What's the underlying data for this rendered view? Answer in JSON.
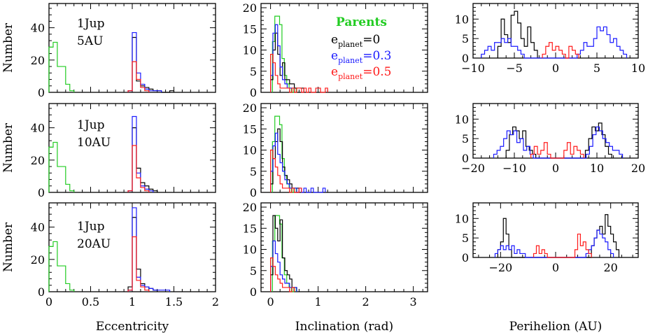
{
  "colors": {
    "parents": "#22cc22",
    "e0": "#000000",
    "e03": "#1a1aff",
    "e05": "#ff1a1a"
  },
  "legend": {
    "title": "Parents",
    "entries": [
      {
        "main": "e",
        "sub": "planet",
        "suffix": "=0",
        "color": "#000000"
      },
      {
        "main": "e",
        "sub": "planet",
        "suffix": "=0.3",
        "color": "#1a1aff"
      },
      {
        "main": "e",
        "sub": "planet",
        "suffix": "=0.5",
        "color": "#ff1a1a"
      }
    ]
  },
  "rows": [
    {
      "label_line1": "1Jup",
      "label_line2": "5AU"
    },
    {
      "label_line1": "1Jup",
      "label_line2": "10AU"
    },
    {
      "label_line1": "1Jup",
      "label_line2": "20AU"
    }
  ],
  "chart_data": [
    {
      "id": "ecc-5AU",
      "type": "histogram",
      "xlabel": "",
      "ylabel": "Number",
      "xlim": [
        0,
        2
      ],
      "ylim": [
        0,
        55
      ],
      "xticks": [
        0,
        0.5,
        1,
        1.5,
        2
      ],
      "yticks": [
        0,
        20,
        40
      ],
      "show_xticklabels": false,
      "series": [
        {
          "key": "parents",
          "x0": 0,
          "dx": 0.05,
          "values": [
            28,
            31,
            16,
            16,
            5,
            1
          ]
        },
        {
          "key": "e0",
          "x0": 0.95,
          "dx": 0.05,
          "values": [
            1,
            34,
            7,
            4,
            3,
            2,
            1,
            1,
            0,
            0,
            1
          ]
        },
        {
          "key": "e03",
          "x0": 0.95,
          "dx": 0.05,
          "values": [
            1,
            37,
            12,
            5,
            2,
            1,
            1,
            1
          ]
        },
        {
          "key": "e05",
          "x0": 0.95,
          "dx": 0.05,
          "values": [
            1,
            19,
            8,
            3,
            1
          ]
        }
      ]
    },
    {
      "id": "inc-5AU",
      "type": "histogram",
      "xlabel": "",
      "ylabel": "",
      "xlim": [
        -0.2,
        3.3
      ],
      "ylim": [
        0,
        21
      ],
      "xticks": [
        0,
        1,
        2,
        3
      ],
      "yticks": [
        0,
        5,
        10,
        15,
        20
      ],
      "show_xticklabels": false,
      "series": [
        {
          "key": "parents",
          "x0": 0.04,
          "dx": 0.05,
          "values": [
            12,
            18,
            18,
            16,
            8,
            4,
            2,
            1,
            0,
            1
          ]
        },
        {
          "key": "e0",
          "x0": 0,
          "dx": 0.05,
          "values": [
            3,
            10,
            14,
            9,
            4,
            7,
            3,
            3,
            2,
            2,
            1,
            1,
            1,
            1
          ]
        },
        {
          "key": "e03",
          "x0": 0,
          "dx": 0.05,
          "values": [
            4,
            14,
            16,
            11,
            6,
            3,
            2,
            1,
            1,
            1
          ]
        },
        {
          "key": "e05",
          "x0": 0,
          "dx": 0.05,
          "values": [
            9,
            7,
            4,
            2,
            1,
            1,
            1,
            1,
            0,
            1,
            0,
            1,
            1,
            0,
            1,
            0,
            1,
            0,
            0,
            1,
            1,
            0,
            0,
            1
          ]
        }
      ]
    },
    {
      "id": "peri-5AU",
      "type": "histogram",
      "xlabel": "",
      "ylabel": "",
      "xlim": [
        -10,
        10
      ],
      "ylim": [
        0,
        14
      ],
      "xticks": [
        -10,
        -5,
        0,
        5,
        10
      ],
      "yticks": [
        0,
        5,
        10
      ],
      "show_xticklabels": true,
      "series": [
        {
          "key": "e0",
          "x0": -7,
          "dx": 0.4,
          "values": [
            3,
            10,
            6,
            4,
            11,
            12,
            9,
            5,
            3,
            8,
            4,
            2
          ]
        },
        {
          "key": "e03",
          "x0": -9,
          "dx": 0.4,
          "values": [
            1,
            2,
            3,
            2,
            4,
            4,
            5,
            4,
            5,
            3,
            3,
            2,
            1,
            0,
            0,
            0,
            0,
            0,
            0,
            0,
            0,
            0,
            0,
            0,
            0,
            0,
            0,
            0,
            0,
            1,
            2,
            4,
            3,
            3,
            5,
            8,
            7,
            8,
            6,
            4,
            5,
            3,
            2,
            1
          ]
        },
        {
          "key": "e05",
          "x0": -1.6,
          "dx": 0.4,
          "values": [
            1,
            3,
            4,
            2,
            3,
            2,
            1,
            0,
            3,
            2,
            1
          ]
        }
      ]
    },
    {
      "id": "ecc-10AU",
      "type": "histogram",
      "xlabel": "",
      "ylabel": "Number",
      "xlim": [
        0,
        2
      ],
      "ylim": [
        0,
        55
      ],
      "xticks": [
        0,
        0.5,
        1,
        1.5,
        2
      ],
      "yticks": [
        0,
        20,
        40
      ],
      "show_xticklabels": false,
      "series": [
        {
          "key": "parents",
          "x0": 0,
          "dx": 0.05,
          "values": [
            28,
            31,
            16,
            16,
            5,
            1
          ]
        },
        {
          "key": "e0",
          "x0": 0.95,
          "dx": 0.05,
          "values": [
            1,
            40,
            15,
            6,
            4,
            2,
            1
          ]
        },
        {
          "key": "e03",
          "x0": 0.95,
          "dx": 0.05,
          "values": [
            1,
            47,
            12,
            4,
            2,
            1
          ]
        },
        {
          "key": "e05",
          "x0": 0.95,
          "dx": 0.05,
          "values": [
            1,
            29,
            9,
            3,
            1
          ]
        }
      ]
    },
    {
      "id": "inc-10AU",
      "type": "histogram",
      "xlabel": "",
      "ylabel": "",
      "xlim": [
        -0.2,
        3.3
      ],
      "ylim": [
        0,
        21
      ],
      "xticks": [
        0,
        1,
        2,
        3
      ],
      "yticks": [
        0,
        5,
        10,
        15,
        20
      ],
      "show_xticklabels": false,
      "series": [
        {
          "key": "parents",
          "x0": 0.04,
          "dx": 0.05,
          "values": [
            12,
            18,
            18,
            16,
            8,
            4,
            2,
            1,
            0,
            1
          ]
        },
        {
          "key": "e0",
          "x0": 0,
          "dx": 0.05,
          "values": [
            2,
            8,
            12,
            15,
            12,
            6,
            4,
            3,
            2,
            1,
            1,
            1
          ]
        },
        {
          "key": "e03",
          "x0": 0,
          "dx": 0.05,
          "values": [
            5,
            11,
            14,
            9,
            7,
            5,
            3,
            2,
            1,
            1,
            1,
            0,
            1,
            0,
            1,
            0,
            0,
            1,
            0,
            0,
            0,
            0,
            1
          ]
        },
        {
          "key": "e05",
          "x0": 0,
          "dx": 0.05,
          "values": [
            10,
            8,
            6,
            4,
            2,
            1,
            1,
            1,
            0,
            1,
            0,
            0,
            1
          ]
        }
      ]
    },
    {
      "id": "peri-10AU",
      "type": "histogram",
      "xlabel": "",
      "ylabel": "",
      "xlim": [
        -20,
        20
      ],
      "ylim": [
        0,
        14
      ],
      "xticks": [
        -20,
        -10,
        0,
        10,
        20
      ],
      "yticks": [
        0,
        5,
        10
      ],
      "show_xticklabels": true,
      "series": [
        {
          "key": "e0",
          "x0": -12,
          "dx": 0.8,
          "values": [
            2,
            6,
            8,
            7,
            5,
            7,
            3,
            2,
            1,
            0,
            0,
            0,
            0,
            0,
            0,
            0,
            0,
            0,
            0,
            0,
            0,
            0,
            0,
            0,
            2,
            5,
            8,
            7,
            9,
            6,
            3,
            1
          ]
        },
        {
          "key": "e03",
          "x0": -15,
          "dx": 0.8,
          "values": [
            1,
            2,
            3,
            5,
            7,
            6,
            7,
            4,
            5,
            2,
            3,
            1,
            0,
            0,
            0,
            0,
            0,
            0,
            0,
            0,
            0,
            0,
            0,
            0,
            0,
            0,
            0,
            0,
            1,
            3,
            6,
            8,
            7,
            5,
            4,
            3,
            2,
            2,
            1
          ]
        },
        {
          "key": "e05",
          "x0": -6,
          "dx": 0.8,
          "values": [
            1,
            3,
            1,
            2,
            4,
            1,
            0,
            0,
            0,
            0,
            2,
            4,
            1,
            3,
            2,
            1
          ]
        }
      ]
    },
    {
      "id": "ecc-20AU",
      "type": "histogram",
      "xlabel": "Eccentricity",
      "ylabel": "Number",
      "xlim": [
        0,
        2
      ],
      "ylim": [
        0,
        55
      ],
      "xticks": [
        0,
        0.5,
        1,
        1.5,
        2
      ],
      "yticks": [
        0,
        20,
        40
      ],
      "show_xticklabels": true,
      "series": [
        {
          "key": "parents",
          "x0": 0,
          "dx": 0.05,
          "values": [
            28,
            31,
            16,
            16,
            5,
            1
          ]
        },
        {
          "key": "e0",
          "x0": 0.95,
          "dx": 0.05,
          "values": [
            3,
            46,
            14,
            5,
            3,
            2,
            1
          ]
        },
        {
          "key": "e03",
          "x0": 0.95,
          "dx": 0.05,
          "values": [
            1,
            52,
            9,
            4,
            3,
            2,
            1,
            1,
            1,
            1
          ]
        },
        {
          "key": "e05",
          "x0": 0.95,
          "dx": 0.05,
          "values": [
            1,
            34,
            7,
            3,
            1
          ]
        }
      ]
    },
    {
      "id": "inc-20AU",
      "type": "histogram",
      "xlabel": "Inclination (rad)",
      "ylabel": "",
      "xlim": [
        -0.2,
        3.3
      ],
      "ylim": [
        0,
        21
      ],
      "xticks": [
        0,
        1,
        2,
        3
      ],
      "yticks": [
        0,
        5,
        10,
        15,
        20
      ],
      "show_xticklabels": true,
      "series": [
        {
          "key": "parents",
          "x0": 0.04,
          "dx": 0.05,
          "values": [
            12,
            18,
            18,
            16,
            8,
            4,
            2,
            1,
            0,
            1
          ]
        },
        {
          "key": "e0",
          "x0": 0,
          "dx": 0.05,
          "values": [
            4,
            18,
            15,
            12,
            17,
            8,
            5,
            4,
            3,
            1,
            1
          ]
        },
        {
          "key": "e03",
          "x0": 0,
          "dx": 0.05,
          "values": [
            6,
            12,
            9,
            7,
            4,
            3,
            2,
            2,
            1,
            1,
            1
          ]
        },
        {
          "key": "e05",
          "x0": 0,
          "dx": 0.05,
          "values": [
            8,
            6,
            4,
            3,
            2,
            1,
            1,
            1,
            0,
            1
          ]
        }
      ]
    },
    {
      "id": "peri-20AU",
      "type": "histogram",
      "xlabel": "Perihelion (AU)",
      "ylabel": "",
      "xlim": [
        -30,
        30
      ],
      "ylim": [
        0,
        14
      ],
      "xticks": [
        -20,
        0,
        20
      ],
      "yticks": [
        0,
        5,
        10
      ],
      "show_xticklabels": true,
      "series": [
        {
          "key": "e0",
          "x0": -21,
          "dx": 1,
          "values": [
            2,
            4,
            10,
            6,
            2,
            0,
            0,
            0,
            0,
            0,
            0,
            0,
            0,
            0,
            0,
            0,
            0,
            0,
            0,
            0,
            0,
            0,
            0,
            0,
            0,
            0,
            0,
            0,
            0,
            0,
            0,
            0,
            0,
            0,
            3,
            5,
            7,
            8,
            6,
            11,
            8,
            6,
            4,
            2
          ]
        },
        {
          "key": "e03",
          "x0": -22,
          "dx": 1,
          "values": [
            1,
            2,
            3,
            2,
            3,
            2,
            3,
            1,
            2,
            1,
            1,
            0,
            0,
            0,
            0,
            0,
            0,
            0,
            0,
            0,
            0,
            0,
            0,
            0,
            0,
            0,
            0,
            0,
            0,
            0,
            0,
            0,
            0,
            1,
            2,
            3,
            5,
            7,
            6,
            5,
            4,
            2,
            1
          ]
        },
        {
          "key": "e05",
          "x0": -8,
          "dx": 1,
          "values": [
            1,
            3,
            1,
            2,
            1,
            0,
            0,
            0,
            0,
            0,
            0,
            0,
            0,
            0,
            0,
            2,
            6,
            3,
            4,
            2,
            1
          ]
        }
      ]
    }
  ]
}
